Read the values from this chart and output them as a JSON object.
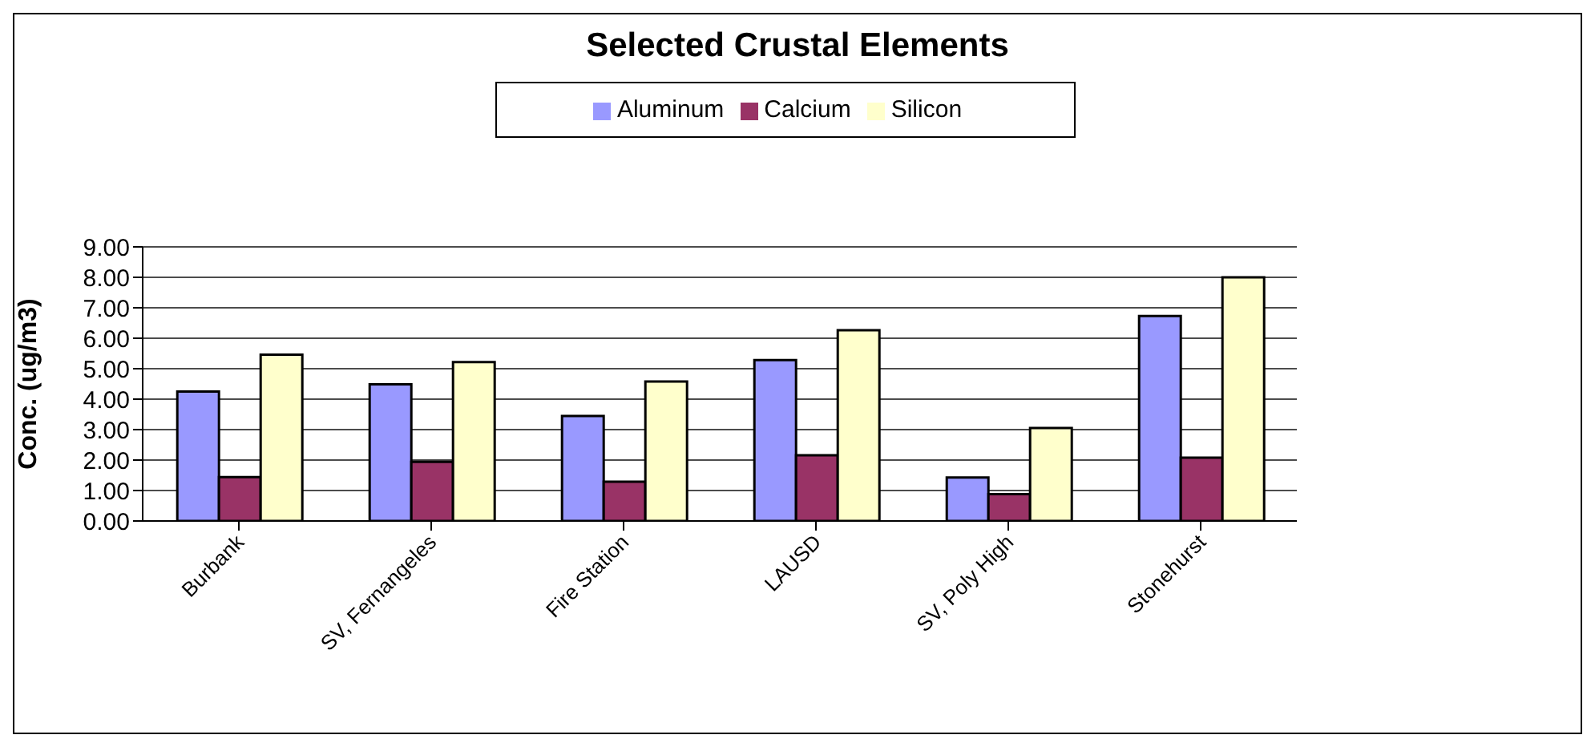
{
  "chart_data": {
    "type": "bar",
    "title": "Selected Crustal Elements",
    "ylabel": "Conc. (ug/m3)",
    "categories": [
      "Burbank",
      "SV, Fernangeles",
      "Fire Station",
      "LAUSD",
      "SV, Poly High",
      "Stonehurst"
    ],
    "series": [
      {
        "name": "Aluminum",
        "color": "#9999ff",
        "values": [
          4.25,
          4.49,
          3.45,
          5.28,
          1.43,
          6.73
        ]
      },
      {
        "name": "Calcium",
        "color": "#993366",
        "values": [
          1.44,
          1.94,
          1.29,
          2.16,
          0.88,
          2.08
        ]
      },
      {
        "name": "Silicon",
        "color": "#ffffcc",
        "values": [
          5.46,
          5.22,
          4.58,
          6.26,
          3.05,
          8.0
        ]
      }
    ],
    "ylim": [
      0,
      9
    ],
    "yticks": [
      {
        "value": 0,
        "label": "0.00"
      },
      {
        "value": 1,
        "label": "1.00"
      },
      {
        "value": 2,
        "label": "2.00"
      },
      {
        "value": 3,
        "label": "3.00"
      },
      {
        "value": 4,
        "label": "4.00"
      },
      {
        "value": 5,
        "label": "5.00"
      },
      {
        "value": 6,
        "label": "6.00"
      },
      {
        "value": 7,
        "label": "7.00"
      },
      {
        "value": 8,
        "label": "8.00"
      },
      {
        "value": 9,
        "label": "9.00"
      }
    ],
    "grid": "y",
    "legend": "top"
  }
}
